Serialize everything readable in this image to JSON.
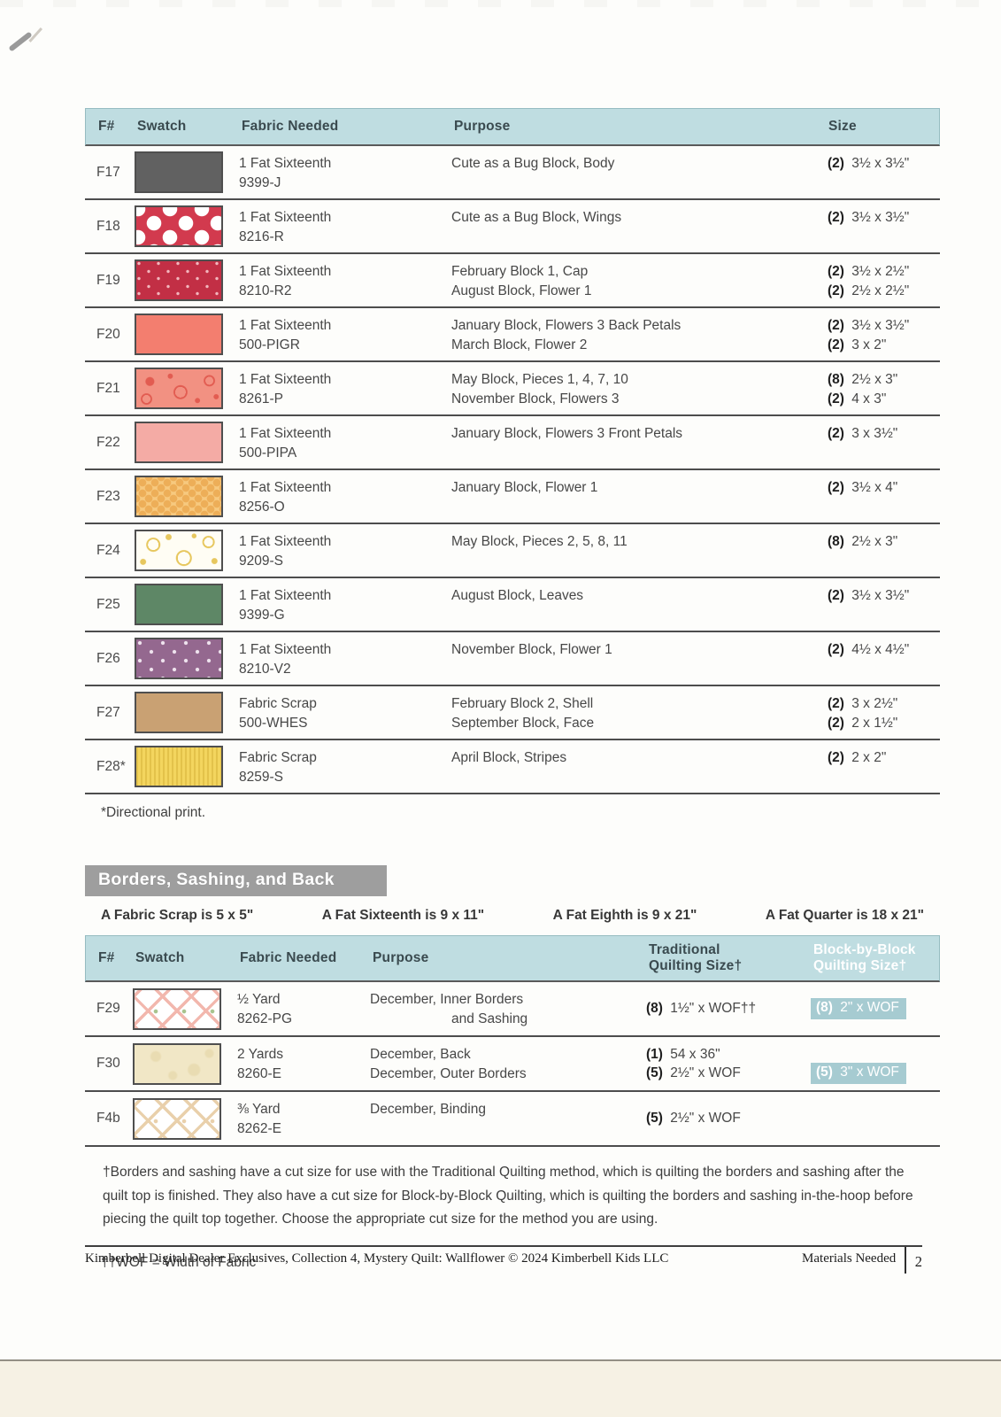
{
  "colors": {
    "header_teal": "#bfdde1",
    "badge_teal": "#a6cbd1",
    "section_gray": "#9e9e9e",
    "row_border": "#4d4d4d"
  },
  "table1": {
    "headers": [
      "F#",
      "Swatch",
      "Fabric Needed",
      "Purpose",
      "Size"
    ],
    "footnote": "*Directional print.",
    "rows": [
      {
        "f": "F17",
        "swatch": {
          "style": "solid",
          "bg": "#616161",
          "name": "dark-gray-solid"
        },
        "fabric": [
          "1 Fat Sixteenth",
          "9399-J"
        ],
        "lines": [
          {
            "purpose": "Cute as a Bug Block, Body",
            "count": "(2)",
            "size": "3½ x 3½\""
          }
        ]
      },
      {
        "f": "F18",
        "swatch": {
          "style": "polka",
          "bg": "#d23a4e",
          "fg": "#ffffff",
          "name": "red-white-polka-dot"
        },
        "fabric": [
          "1 Fat Sixteenth",
          "8216-R"
        ],
        "lines": [
          {
            "purpose": "Cute as a Bug Block, Wings",
            "count": "(2)",
            "size": "3½ x 3½\""
          }
        ]
      },
      {
        "f": "F19",
        "swatch": {
          "style": "speckle",
          "bg": "#c22f45",
          "fg": "#f2b6bd",
          "name": "crimson-speckle"
        },
        "fabric": [
          "1 Fat Sixteenth",
          "8210-R2"
        ],
        "lines": [
          {
            "purpose": "February Block 1, Cap",
            "count": "(2)",
            "size": "3½ x 2½\""
          },
          {
            "purpose": "August Block, Flower 1",
            "count": "(2)",
            "size": "2½ x 2½\""
          }
        ]
      },
      {
        "f": "F20",
        "swatch": {
          "style": "solid",
          "bg": "#f37e6f",
          "name": "coral-solid"
        },
        "fabric": [
          "1 Fat Sixteenth",
          "500-PIGR"
        ],
        "lines": [
          {
            "purpose": "January Block, Flowers 3 Back Petals",
            "count": "(2)",
            "size": "3½ x 3½\""
          },
          {
            "purpose": "March Block, Flower 2",
            "count": "(2)",
            "size": "3 x 2\""
          }
        ]
      },
      {
        "f": "F21",
        "swatch": {
          "style": "floral",
          "bg": "#f29182",
          "fg": "#e25c51",
          "name": "salmon-floral-doodle"
        },
        "fabric": [
          "1 Fat Sixteenth",
          "8261-P"
        ],
        "lines": [
          {
            "purpose": "May Block, Pieces 1, 4, 7, 10",
            "count": "(8)",
            "size": "2½ x 3\""
          },
          {
            "purpose": "November Block, Flowers 3",
            "count": "(2)",
            "size": "4 x 3\""
          }
        ]
      },
      {
        "f": "F22",
        "swatch": {
          "style": "solid",
          "bg": "#f4aba5",
          "name": "light-pink-solid"
        },
        "fabric": [
          "1 Fat Sixteenth",
          "500-PIPA"
        ],
        "lines": [
          {
            "purpose": "January Block, Flowers 3 Front Petals",
            "count": "(2)",
            "size": "3 x 3½\""
          }
        ]
      },
      {
        "f": "F23",
        "swatch": {
          "style": "honeycomb",
          "bg": "#f7c97f",
          "fg": "#edae58",
          "name": "orange-honeycomb"
        },
        "fabric": [
          "1 Fat Sixteenth",
          "8256-O"
        ],
        "lines": [
          {
            "purpose": "January Block, Flower 1",
            "count": "(2)",
            "size": "3½ x 4\""
          }
        ]
      },
      {
        "f": "F24",
        "swatch": {
          "style": "vine",
          "bg": "#fffdf4",
          "fg": "#e7c75e",
          "name": "white-yellow-vine"
        },
        "fabric": [
          "1 Fat Sixteenth",
          "9209-S"
        ],
        "lines": [
          {
            "purpose": "May Block, Pieces 2, 5, 8, 11",
            "count": "(8)",
            "size": "2½ x 3\""
          }
        ]
      },
      {
        "f": "F25",
        "swatch": {
          "style": "solid",
          "bg": "#5e8766",
          "name": "green-solid"
        },
        "fabric": [
          "1 Fat Sixteenth",
          "9399-G"
        ],
        "lines": [
          {
            "purpose": "August Block, Leaves",
            "count": "(2)",
            "size": "3½ x 3½\""
          }
        ]
      },
      {
        "f": "F26",
        "swatch": {
          "style": "dots",
          "bg": "#94688f",
          "fg": "#efe3ee",
          "name": "purple-pin-dot"
        },
        "fabric": [
          "1 Fat Sixteenth",
          "8210-V2"
        ],
        "lines": [
          {
            "purpose": "November Block, Flower 1",
            "count": "(2)",
            "size": "4½ x 4½\""
          }
        ]
      },
      {
        "f": "F27",
        "swatch": {
          "style": "solid",
          "bg": "#c9a173",
          "name": "tan-solid"
        },
        "fabric": [
          "Fabric Scrap",
          "500-WHES"
        ],
        "lines": [
          {
            "purpose": "February Block 2, Shell",
            "count": "(2)",
            "size": "3 x 2½\""
          },
          {
            "purpose": "September Block, Face",
            "count": "(2)",
            "size": "2 x 1½\""
          }
        ]
      },
      {
        "f": "F28*",
        "swatch": {
          "style": "stripes",
          "bg": "#f3d55e",
          "fg": "#e3c24a",
          "name": "yellow-stripe"
        },
        "fabric": [
          "Fabric Scrap",
          "8259-S"
        ],
        "lines": [
          {
            "purpose": "April Block, Stripes",
            "count": "(2)",
            "size": "2 x 2\""
          }
        ]
      }
    ]
  },
  "section": {
    "title": "Borders, Sashing, and Back",
    "legend": [
      "A Fabric Scrap is 5 x 5\"",
      "A Fat Sixteenth is 9 x 11\"",
      "A Fat Eighth is 9 x 21\"",
      "A Fat Quarter is 18 x 21\""
    ]
  },
  "table2": {
    "headers": [
      "F#",
      "Swatch",
      "Fabric Needed",
      "Purpose",
      "Traditional Quilting Size†",
      "Block-by-Block Quilting Size†"
    ],
    "rows": [
      {
        "f": "F29",
        "swatch": {
          "style": "lattice",
          "bg": "#ffffff",
          "fg": "#f2b7ad",
          "fg2": "#a8c48f",
          "name": "pink-green-bias-plaid"
        },
        "fabric": [
          "½ Yard",
          "8262-PG"
        ],
        "purpose": [
          {
            "t": "December, Inner Borders"
          },
          {
            "t": "and Sashing",
            "indent": true
          }
        ],
        "trad": [
          {
            "count": "(8)",
            "size": "1½\" x WOF††"
          }
        ],
        "block": [
          {
            "count": "(8)",
            "size": "2\" x WOF"
          }
        ]
      },
      {
        "f": "F30",
        "swatch": {
          "style": "mottle",
          "bg": "#f1e7c6",
          "fg": "#e9dcb2",
          "name": "cream-tonal"
        },
        "fabric": [
          "2 Yards",
          "8260-E"
        ],
        "purpose": [
          {
            "t": "December, Back"
          },
          {
            "t": "December, Outer Borders"
          }
        ],
        "trad": [
          {
            "count": "(1)",
            "size": "54 x 36\""
          },
          {
            "count": "(5)",
            "size": "2½\" x WOF"
          }
        ],
        "block": [
          null,
          {
            "count": "(5)",
            "size": "3\" x WOF"
          }
        ]
      },
      {
        "f": "F4b",
        "swatch": {
          "style": "lattice",
          "bg": "#ffffff",
          "fg": "#e9d0ab",
          "fg2": "#e9d0ab",
          "name": "tan-bias-plaid"
        },
        "fabric": [
          "⅜ Yard",
          "8262-E"
        ],
        "purpose": [
          {
            "t": "December, Binding"
          }
        ],
        "trad": [
          {
            "count": "(5)",
            "size": "2½\" x WOF"
          }
        ],
        "block": []
      }
    ]
  },
  "footnotes": {
    "dagger": "†Borders and sashing have a cut size for use with the Traditional Quilting method, which is quilting the borders and sashing after the quilt top is finished. They also have a cut size for Block-by-Block Quilting, which is quilting the borders and sashing in-the-hoop before piecing the quilt top together. Choose the appropriate cut size for the method you are using.",
    "wof": "††WOF = Width of Fabric"
  },
  "footer": {
    "left": "Kimberbell Digital Dealer Exclusives, Collection 4, Mystery Quilt: Wallflower © 2024 Kimberbell Kids LLC",
    "label": "Materials Needed",
    "page": "2"
  }
}
